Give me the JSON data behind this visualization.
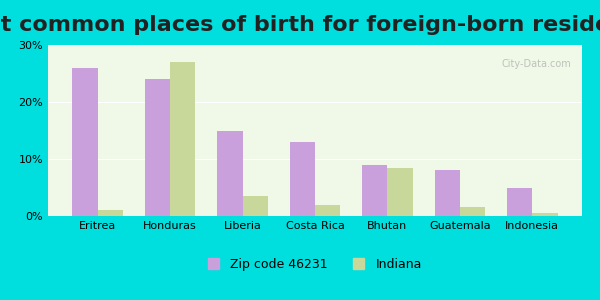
{
  "title": "Most common places of birth for foreign-born residents",
  "categories": [
    "Eritrea",
    "Honduras",
    "Liberia",
    "Costa Rica",
    "Bhutan",
    "Guatemala",
    "Indonesia"
  ],
  "zip_values": [
    26.0,
    24.0,
    15.0,
    13.0,
    9.0,
    8.0,
    5.0
  ],
  "indiana_values": [
    1.0,
    27.0,
    3.5,
    2.0,
    8.5,
    1.5,
    0.5
  ],
  "zip_color": "#c9a0dc",
  "indiana_color": "#c8d89a",
  "background_outer": "#00dede",
  "background_inner": "#f0f8e8",
  "zip_label": "Zip code 46231",
  "indiana_label": "Indiana",
  "ylim": [
    0,
    30
  ],
  "yticks": [
    0,
    10,
    20,
    30
  ],
  "ytick_labels": [
    "0%",
    "10%",
    "20%",
    "30%"
  ],
  "title_fontsize": 16,
  "bar_width": 0.35,
  "watermark": "City-Data.com"
}
